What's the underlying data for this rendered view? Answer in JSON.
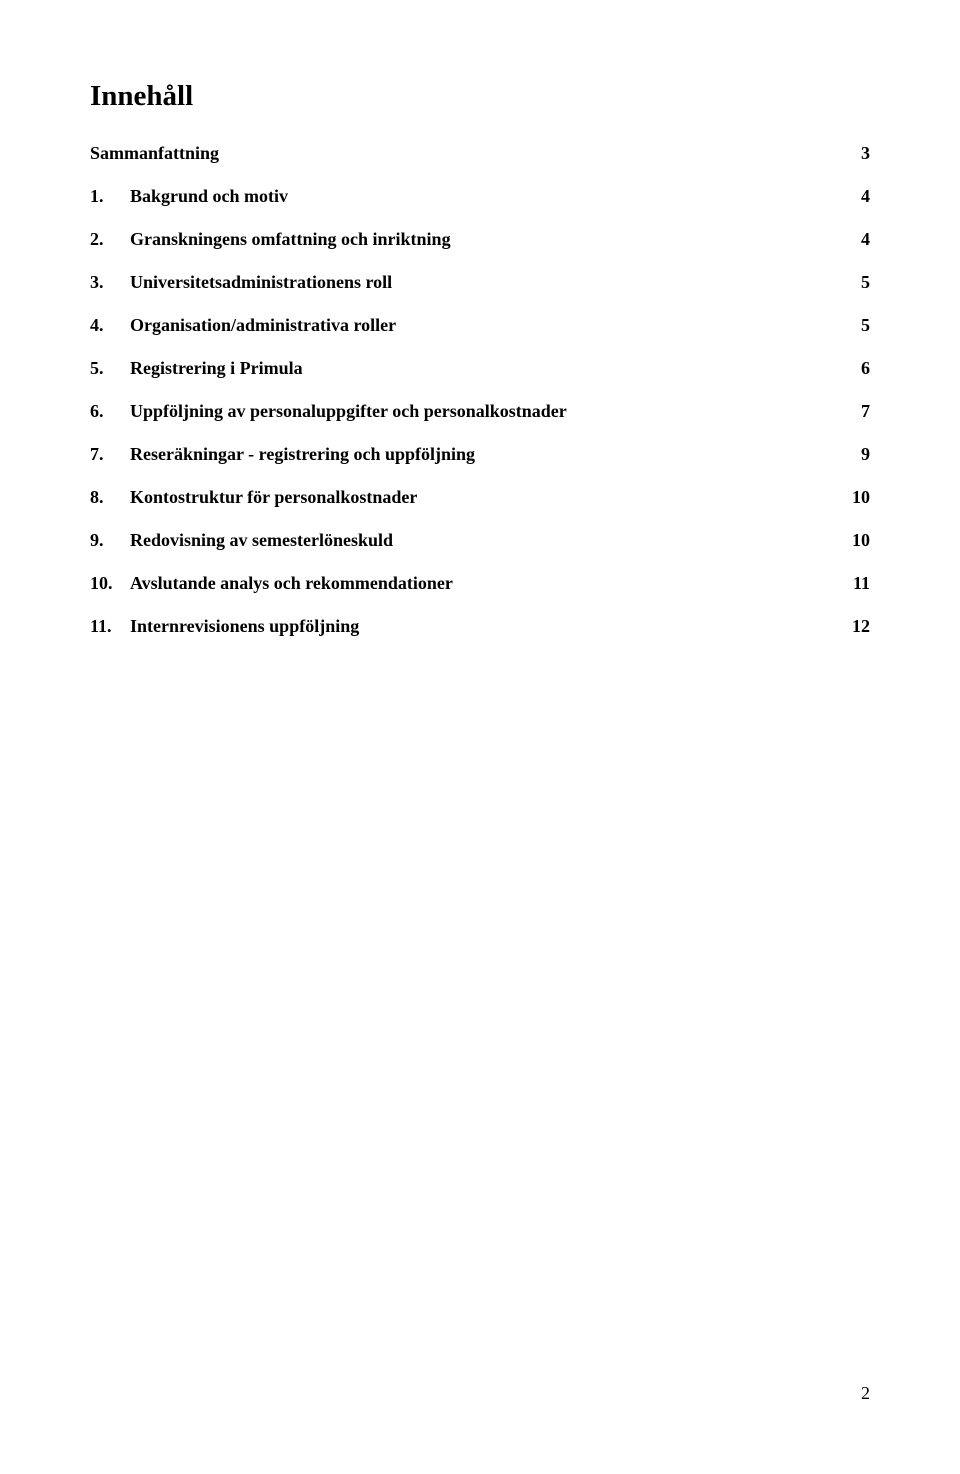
{
  "title": "Innehåll",
  "toc": [
    {
      "num": "",
      "label": "Sammanfattning",
      "page": "3"
    },
    {
      "num": "1.",
      "label": "Bakgrund och motiv",
      "page": "4"
    },
    {
      "num": "2.",
      "label": "Granskningens omfattning och inriktning",
      "page": "4"
    },
    {
      "num": "3.",
      "label": "Universitetsadministrationens roll",
      "page": "5"
    },
    {
      "num": "4.",
      "label": "Organisation/administrativa roller",
      "page": "5"
    },
    {
      "num": "5.",
      "label": "Registrering i Primula",
      "page": "6"
    },
    {
      "num": "6.",
      "label": "Uppföljning av personaluppgifter och personalkostnader",
      "page": "7"
    },
    {
      "num": "7.",
      "label": "Reseräkningar - registrering och uppföljning",
      "page": "9"
    },
    {
      "num": "8.",
      "label": "Kontostruktur för personalkostnader",
      "page": "10"
    },
    {
      "num": "9.",
      "label": "Redovisning av semesterlöneskuld",
      "page": "10"
    },
    {
      "num": "10.",
      "label": "Avslutande analys och rekommendationer",
      "page": "11"
    },
    {
      "num": "11.",
      "label": "Internrevisionens uppföljning",
      "page": "12"
    }
  ],
  "page_number": "2"
}
